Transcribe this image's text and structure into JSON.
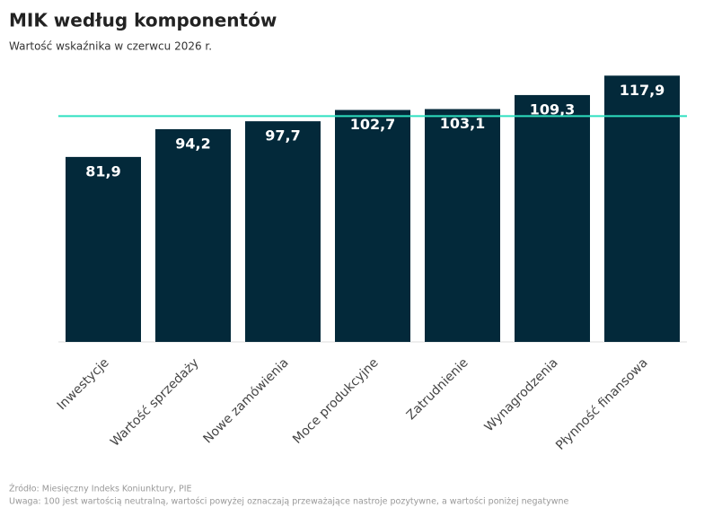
{
  "chart_data": {
    "type": "bar",
    "title": "MIK według komponentów",
    "subtitle": "Wartość wskaźnika w czerwcu 2026 r.",
    "categories": [
      "Inwestycje",
      "Wartość sprzedaży",
      "Nowe zamówienia",
      "Moce produkcyjne",
      "Zatrudnienie",
      "Wynagrodzenia",
      "Płynność finansowa"
    ],
    "values": [
      81.9,
      94.2,
      97.7,
      102.7,
      103.1,
      109.3,
      117.9
    ],
    "value_labels": [
      "81,9",
      "94,2",
      "97,7",
      "102,7",
      "103,1",
      "109,3",
      "117,9"
    ],
    "color": "#03293a",
    "reference_line": {
      "value": 100,
      "color": "#2ee0c0"
    },
    "ylim": [
      0,
      120
    ],
    "source": "Źródło: Miesięczny Indeks Koniunktury, PIE",
    "note": "Uwaga: 100 jest wartością neutralną, wartości powyżej oznaczają przeważające nastroje pozytywne, a wartości poniżej negatywne"
  }
}
